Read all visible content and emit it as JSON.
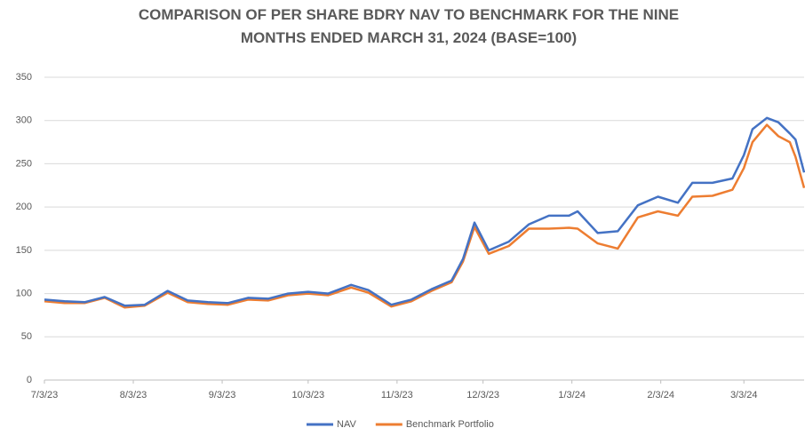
{
  "chart_data": {
    "type": "line",
    "title": "COMPARISON OF PER SHARE BDRY NAV TO BENCHMARK FOR THE NINE",
    "subtitle": "MONTHS ENDED MARCH 31, 2024 (BASE=100)",
    "x": [
      "2023-07-03",
      "2023-07-10",
      "2023-07-17",
      "2023-07-24",
      "2023-07-31",
      "2023-08-07",
      "2023-08-15",
      "2023-08-22",
      "2023-08-29",
      "2023-09-05",
      "2023-09-12",
      "2023-09-19",
      "2023-09-26",
      "2023-10-03",
      "2023-10-10",
      "2023-10-18",
      "2023-10-24",
      "2023-11-01",
      "2023-11-08",
      "2023-11-15",
      "2023-11-22",
      "2023-11-26",
      "2023-11-30",
      "2023-12-05",
      "2023-12-12",
      "2023-12-19",
      "2023-12-26",
      "2024-01-02",
      "2024-01-05",
      "2024-01-12",
      "2024-01-19",
      "2024-01-26",
      "2024-02-02",
      "2024-02-09",
      "2024-02-14",
      "2024-02-21",
      "2024-02-28",
      "2024-03-03",
      "2024-03-06",
      "2024-03-11",
      "2024-03-15",
      "2024-03-19",
      "2024-03-21",
      "2024-03-24"
    ],
    "series": [
      {
        "name": "NAV",
        "color": "#4472c4",
        "values": [
          93,
          91,
          90,
          96,
          86,
          87,
          103,
          92,
          90,
          89,
          95,
          94,
          100,
          102,
          100,
          110,
          104,
          87,
          93,
          105,
          115,
          140,
          182,
          150,
          160,
          180,
          190,
          190,
          195,
          170,
          172,
          202,
          212,
          205,
          228,
          228,
          233,
          260,
          290,
          303,
          298,
          285,
          278,
          240
        ]
      },
      {
        "name": "Benchmark Portfolio",
        "color": "#ed7d31",
        "values": [
          91,
          89,
          89,
          95,
          84,
          86,
          101,
          90,
          88,
          87,
          93,
          92,
          98,
          100,
          98,
          107,
          101,
          85,
          91,
          103,
          113,
          137,
          177,
          146,
          155,
          175,
          175,
          176,
          175,
          158,
          152,
          188,
          195,
          190,
          212,
          213,
          220,
          245,
          275,
          295,
          282,
          275,
          258,
          222
        ]
      }
    ],
    "xlim": [
      "2023-07-03",
      "2024-03-24"
    ],
    "xticks": [
      {
        "value": "2023-07-03",
        "label": "7/3/23"
      },
      {
        "value": "2023-08-03",
        "label": "8/3/23"
      },
      {
        "value": "2023-09-03",
        "label": "9/3/23"
      },
      {
        "value": "2023-10-03",
        "label": "10/3/23"
      },
      {
        "value": "2023-11-03",
        "label": "11/3/23"
      },
      {
        "value": "2023-12-03",
        "label": "12/3/23"
      },
      {
        "value": "2024-01-03",
        "label": "1/3/24"
      },
      {
        "value": "2024-02-03",
        "label": "2/3/24"
      },
      {
        "value": "2024-03-03",
        "label": "3/3/24"
      }
    ],
    "ylim": [
      0,
      350
    ],
    "yticks": [
      0,
      50,
      100,
      150,
      200,
      250,
      300,
      350
    ],
    "grid": true
  }
}
